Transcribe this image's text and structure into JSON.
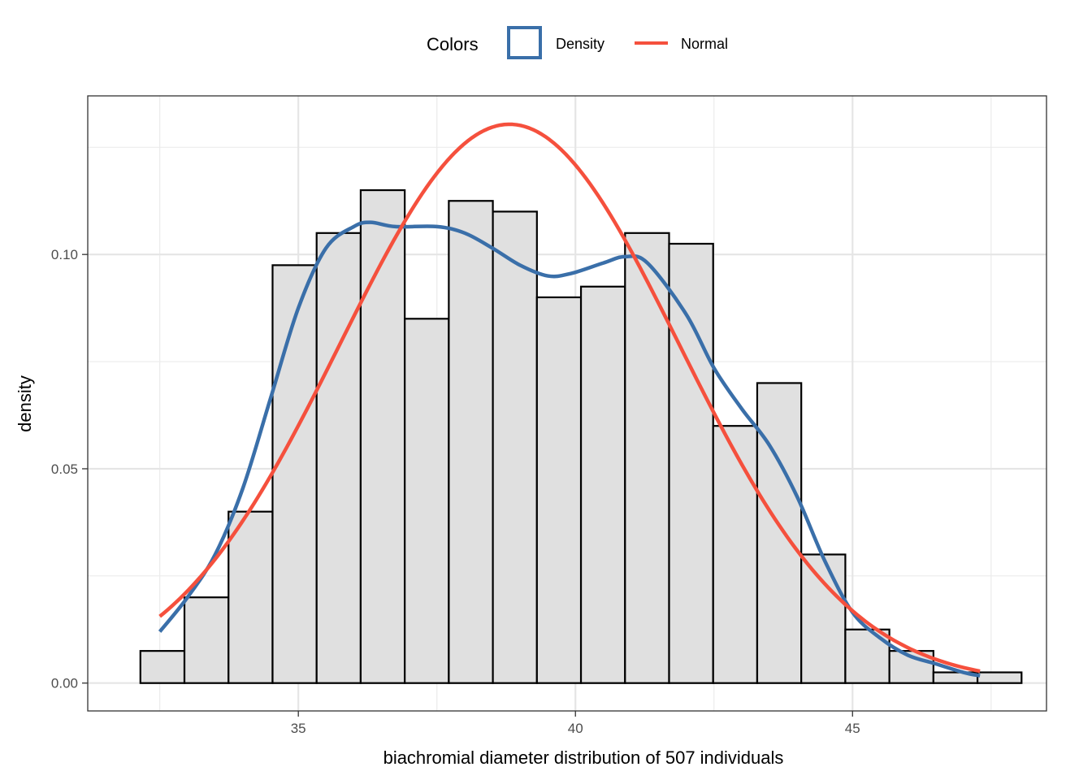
{
  "chart_data": {
    "type": "bar",
    "title": "",
    "xlabel": "biachromial diameter distribution of 507 individuals",
    "ylabel": "density",
    "xlim": [
      31.2,
      48.5
    ],
    "ylim": [
      -0.0065,
      0.137
    ],
    "x_ticks": [
      35,
      40,
      45
    ],
    "y_ticks": [
      0.0,
      0.05,
      0.1
    ],
    "x_tick_labels": [
      "35",
      "40",
      "45"
    ],
    "y_tick_labels": [
      "0.00",
      "0.05",
      "0.10"
    ],
    "grid": true,
    "legend_position": "top",
    "legend": {
      "title": "Colors",
      "entries": [
        {
          "label": "Density",
          "color": "#3a6fa9",
          "kind": "box"
        },
        {
          "label": "Normal",
          "color": "#f5503d",
          "kind": "line"
        }
      ]
    },
    "histogram": {
      "bin_width": 0.795,
      "bins": [
        {
          "start": 32.15,
          "density": 0.0075
        },
        {
          "start": 32.945,
          "density": 0.02
        },
        {
          "start": 33.74,
          "density": 0.04
        },
        {
          "start": 34.535,
          "density": 0.0975
        },
        {
          "start": 35.33,
          "density": 0.105
        },
        {
          "start": 36.125,
          "density": 0.115
        },
        {
          "start": 36.92,
          "density": 0.085
        },
        {
          "start": 37.715,
          "density": 0.1125
        },
        {
          "start": 38.51,
          "density": 0.11
        },
        {
          "start": 39.305,
          "density": 0.09
        },
        {
          "start": 40.1,
          "density": 0.0925
        },
        {
          "start": 40.895,
          "density": 0.105
        },
        {
          "start": 41.69,
          "density": 0.1025
        },
        {
          "start": 42.485,
          "density": 0.06
        },
        {
          "start": 43.28,
          "density": 0.07
        },
        {
          "start": 44.075,
          "density": 0.03
        },
        {
          "start": 44.87,
          "density": 0.0125
        },
        {
          "start": 45.665,
          "density": 0.0075
        },
        {
          "start": 46.46,
          "density": 0.0025
        },
        {
          "start": 47.255,
          "density": 0.0025
        }
      ],
      "fill": "#e0e0e0",
      "stroke": "#000000"
    },
    "series": [
      {
        "name": "Density",
        "color": "#3a6fa9",
        "type": "line",
        "x": [
          32.5,
          33.0,
          33.5,
          34.0,
          34.5,
          35.0,
          35.5,
          36.0,
          36.3,
          36.75,
          37.5,
          38.0,
          38.5,
          39.0,
          39.5,
          39.9,
          40.5,
          40.9,
          41.3,
          42.0,
          42.5,
          43.0,
          43.5,
          44.0,
          44.5,
          45.0,
          45.5,
          46.0,
          46.5,
          47.0,
          47.3
        ],
        "y": [
          0.012,
          0.02,
          0.03,
          0.0455,
          0.0665,
          0.0875,
          0.1015,
          0.1065,
          0.1075,
          0.1065,
          0.1065,
          0.105,
          0.1015,
          0.0975,
          0.095,
          0.0955,
          0.098,
          0.0995,
          0.098,
          0.086,
          0.0735,
          0.064,
          0.0555,
          0.0435,
          0.0285,
          0.0165,
          0.0105,
          0.0065,
          0.0045,
          0.0025,
          0.0017
        ]
      },
      {
        "name": "Normal",
        "color": "#f5503d",
        "type": "line",
        "distribution": {
          "mean": 38.81,
          "sd": 3.06
        },
        "x_range": [
          32.5,
          47.3
        ]
      }
    ]
  }
}
